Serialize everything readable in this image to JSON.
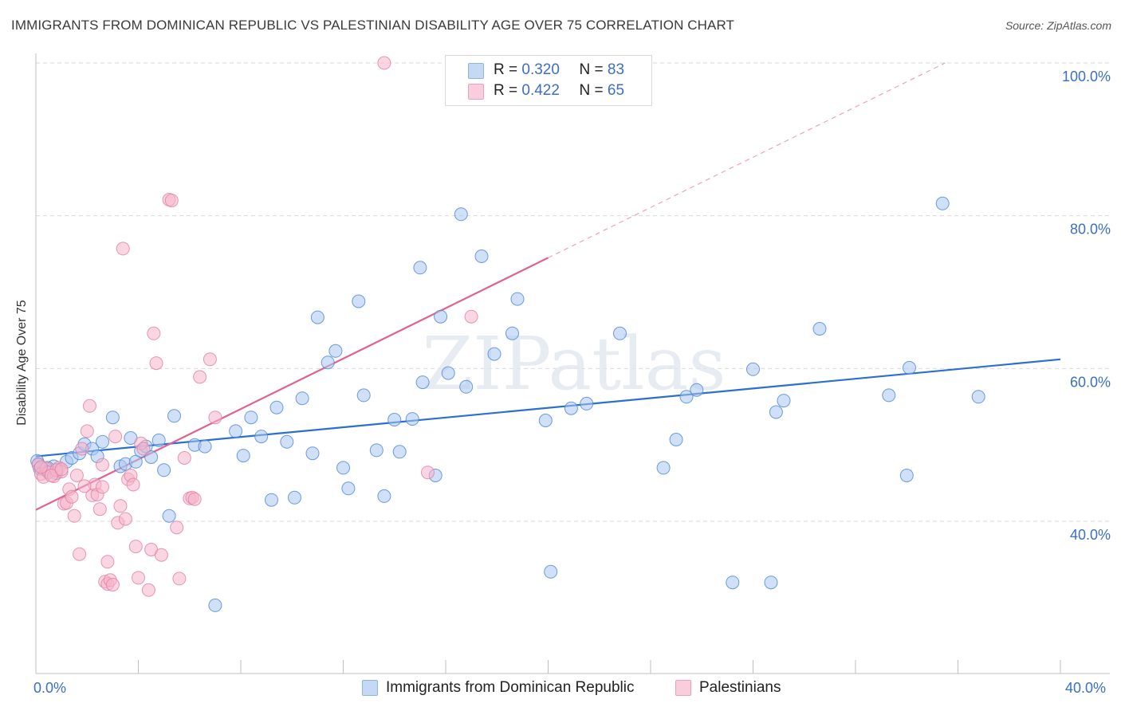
{
  "title": "IMMIGRANTS FROM DOMINICAN REPUBLIC VS PALESTINIAN DISABILITY AGE OVER 75 CORRELATION CHART",
  "source": "Source: ZipAtlas.com",
  "watermark": "ZIPatlas",
  "legend": {
    "rows": [
      {
        "r_label": "R =",
        "r_value": "0.320",
        "n_label": "N =",
        "n_value": "83",
        "color": "#a9c7ef"
      },
      {
        "r_label": "R =",
        "r_value": "0.422",
        "n_label": "N =",
        "n_value": "65",
        "color": "#f6b5ca"
      }
    ]
  },
  "bottom_legend": [
    {
      "label": "Immigrants from Dominican Republic",
      "color": "#a9c7ef"
    },
    {
      "label": "Palestinians",
      "color": "#f6b5ca"
    }
  ],
  "chart_data": {
    "type": "scatter",
    "title": "IMMIGRANTS FROM DOMINICAN REPUBLIC VS PALESTINIAN DISABILITY AGE OVER 75 CORRELATION CHART",
    "xlabel": "",
    "ylabel": "Disability Age Over 75",
    "xlim": [
      0,
      40
    ],
    "ylim": [
      20,
      102
    ],
    "x_tick_labels": [
      "0.0%",
      "40.0%"
    ],
    "y_ticks": [
      40,
      60,
      80,
      100
    ],
    "y_tick_labels": [
      "40.0%",
      "60.0%",
      "80.0%",
      "100.0%"
    ],
    "grid": true,
    "legend_position": "top-center",
    "series": [
      {
        "name": "Immigrants from Dominican Republic",
        "color": "#4a86d8",
        "fill": "#a9c7ef",
        "trend": {
          "x": [
            0,
            40
          ],
          "y": [
            48.5,
            61.2
          ],
          "color": "#2a6fd1"
        },
        "points": [
          [
            0.1,
            47.5
          ],
          [
            0.3,
            46.8
          ],
          [
            0.5,
            46.5
          ],
          [
            0.7,
            47.2
          ],
          [
            0.8,
            46.3
          ],
          [
            1.2,
            47.8
          ],
          [
            1.4,
            48.3
          ],
          [
            1.7,
            48.9
          ],
          [
            1.9,
            50.1
          ],
          [
            2.2,
            49.5
          ],
          [
            2.4,
            48.5
          ],
          [
            2.6,
            50.4
          ],
          [
            3.0,
            53.6
          ],
          [
            3.3,
            47.2
          ],
          [
            3.5,
            47.5
          ],
          [
            3.7,
            50.9
          ],
          [
            3.9,
            47.8
          ],
          [
            4.1,
            49.2
          ],
          [
            4.3,
            49.8
          ],
          [
            4.5,
            48.4
          ],
          [
            4.8,
            50.6
          ],
          [
            5.0,
            46.7
          ],
          [
            5.2,
            40.7
          ],
          [
            5.4,
            53.8
          ],
          [
            6.2,
            50.0
          ],
          [
            6.6,
            49.8
          ],
          [
            7.0,
            29.0
          ],
          [
            7.8,
            51.8
          ],
          [
            8.1,
            48.6
          ],
          [
            8.4,
            53.6
          ],
          [
            8.8,
            51.1
          ],
          [
            9.2,
            42.8
          ],
          [
            9.4,
            54.9
          ],
          [
            9.8,
            50.4
          ],
          [
            10.1,
            43.1
          ],
          [
            10.4,
            56.1
          ],
          [
            10.8,
            48.9
          ],
          [
            11.0,
            66.7
          ],
          [
            11.4,
            60.8
          ],
          [
            11.7,
            62.3
          ],
          [
            12.0,
            47.0
          ],
          [
            12.2,
            44.3
          ],
          [
            12.6,
            68.8
          ],
          [
            12.8,
            56.5
          ],
          [
            13.3,
            49.3
          ],
          [
            13.6,
            43.3
          ],
          [
            14.0,
            53.3
          ],
          [
            14.2,
            49.1
          ],
          [
            14.7,
            53.4
          ],
          [
            15.0,
            73.2
          ],
          [
            15.1,
            58.2
          ],
          [
            15.6,
            46.0
          ],
          [
            15.8,
            66.8
          ],
          [
            16.1,
            59.4
          ],
          [
            16.6,
            80.2
          ],
          [
            16.8,
            57.6
          ],
          [
            17.4,
            74.7
          ],
          [
            17.9,
            61.9
          ],
          [
            18.6,
            64.6
          ],
          [
            18.8,
            69.1
          ],
          [
            19.9,
            53.2
          ],
          [
            20.1,
            33.4
          ],
          [
            20.9,
            54.8
          ],
          [
            21.5,
            55.4
          ],
          [
            22.8,
            64.6
          ],
          [
            24.5,
            47.0
          ],
          [
            25.0,
            50.7
          ],
          [
            25.4,
            56.3
          ],
          [
            25.8,
            57.2
          ],
          [
            27.2,
            32.0
          ],
          [
            28.0,
            59.9
          ],
          [
            28.7,
            32.0
          ],
          [
            28.9,
            54.3
          ],
          [
            29.2,
            55.8
          ],
          [
            30.6,
            65.2
          ],
          [
            33.3,
            56.5
          ],
          [
            34.0,
            46.0
          ],
          [
            34.1,
            60.1
          ],
          [
            35.4,
            81.6
          ],
          [
            36.8,
            56.3
          ],
          [
            0.05,
            47.9
          ],
          [
            0.15,
            46.9
          ],
          [
            0.45,
            47.0
          ]
        ]
      },
      {
        "name": "Palestinians",
        "color": "#e07fa3",
        "fill": "#f6b5ca",
        "trend": {
          "x": [
            0,
            20
          ],
          "y": [
            41.5,
            74.5
          ],
          "color": "#e0648e"
        },
        "trend_extension": {
          "x": [
            20,
            35.5
          ],
          "y": [
            74.5,
            100.0
          ]
        },
        "points": [
          [
            0.1,
            47.4
          ],
          [
            0.2,
            46.2
          ],
          [
            0.3,
            45.8
          ],
          [
            0.4,
            46.9
          ],
          [
            0.5,
            46.4
          ],
          [
            0.7,
            45.9
          ],
          [
            0.9,
            47.0
          ],
          [
            1.0,
            46.5
          ],
          [
            1.1,
            42.3
          ],
          [
            1.2,
            42.4
          ],
          [
            1.3,
            44.2
          ],
          [
            1.4,
            43.2
          ],
          [
            1.5,
            40.7
          ],
          [
            1.6,
            46.0
          ],
          [
            1.7,
            35.7
          ],
          [
            1.8,
            49.5
          ],
          [
            2.0,
            51.8
          ],
          [
            2.1,
            55.1
          ],
          [
            2.2,
            43.4
          ],
          [
            2.3,
            44.8
          ],
          [
            2.4,
            43.5
          ],
          [
            2.5,
            41.6
          ],
          [
            2.6,
            44.5
          ],
          [
            2.7,
            32.1
          ],
          [
            2.8,
            31.8
          ],
          [
            2.8,
            34.7
          ],
          [
            2.9,
            32.3
          ],
          [
            3.0,
            31.7
          ],
          [
            3.1,
            51.1
          ],
          [
            3.2,
            39.8
          ],
          [
            3.3,
            42.0
          ],
          [
            3.4,
            75.7
          ],
          [
            3.5,
            40.3
          ],
          [
            3.6,
            45.5
          ],
          [
            3.7,
            46.0
          ],
          [
            3.8,
            44.8
          ],
          [
            3.9,
            36.7
          ],
          [
            4.0,
            32.6
          ],
          [
            4.1,
            50.2
          ],
          [
            4.2,
            49.5
          ],
          [
            4.4,
            31.0
          ],
          [
            4.5,
            36.3
          ],
          [
            4.6,
            64.6
          ],
          [
            4.7,
            60.7
          ],
          [
            4.9,
            35.6
          ],
          [
            5.2,
            82.1
          ],
          [
            5.3,
            82.0
          ],
          [
            5.5,
            39.2
          ],
          [
            5.6,
            32.5
          ],
          [
            5.8,
            48.3
          ],
          [
            6.0,
            43.0
          ],
          [
            6.1,
            43.1
          ],
          [
            6.2,
            42.9
          ],
          [
            6.4,
            58.9
          ],
          [
            6.8,
            61.2
          ],
          [
            7.0,
            53.6
          ],
          [
            13.6,
            100.0
          ],
          [
            15.3,
            46.4
          ],
          [
            17.0,
            66.8
          ],
          [
            0.8,
            46.7
          ],
          [
            1.9,
            44.6
          ],
          [
            2.6,
            47.4
          ],
          [
            0.6,
            46.0
          ],
          [
            1.0,
            46.8
          ],
          [
            0.2,
            47.1
          ]
        ]
      }
    ]
  }
}
